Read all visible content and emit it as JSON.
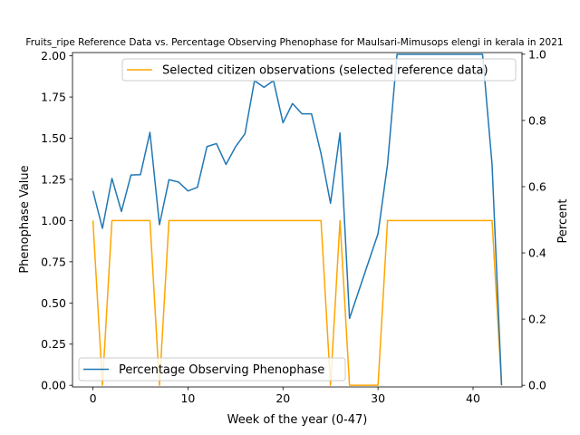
{
  "chart_data": {
    "type": "line",
    "title": "Fruits_ripe Reference Data vs. Percentage Observing Phenophase for Maulsari-Mimusops elengi in kerala in 2021",
    "xlabel": "Week of the year (0-47)",
    "ylabel_left": "Phenophase Value",
    "ylabel_right": "Percent",
    "xlim": [
      -2.15,
      45.15
    ],
    "ylim_left": [
      -0.01,
      2.02
    ],
    "ylim_right": [
      -0.005,
      1.005
    ],
    "x_ticks": [
      0,
      10,
      20,
      30,
      40
    ],
    "y_left_ticks": [
      "0.00",
      "0.25",
      "0.50",
      "0.75",
      "1.00",
      "1.25",
      "1.50",
      "1.75",
      "2.00"
    ],
    "y_right_ticks": [
      "0.0",
      "0.2",
      "0.4",
      "0.6",
      "0.8",
      "1.0"
    ],
    "series": [
      {
        "name": "Selected citizen observations (selected reference data)",
        "axis": "left",
        "color": "#ffa500",
        "legend_position": "upper right",
        "x": [
          0,
          1,
          2,
          3,
          4,
          5,
          6,
          7,
          8,
          9,
          10,
          11,
          12,
          13,
          14,
          15,
          16,
          17,
          18,
          19,
          20,
          21,
          22,
          23,
          24,
          25,
          26,
          27,
          28,
          29,
          30,
          31,
          32,
          33,
          34,
          35,
          36,
          37,
          38,
          39,
          40,
          41,
          42,
          43
        ],
        "values": [
          1,
          0,
          1,
          1,
          1,
          1,
          1,
          0,
          1,
          1,
          1,
          1,
          1,
          1,
          1,
          1,
          1,
          1,
          1,
          1,
          1,
          1,
          1,
          1,
          1,
          0,
          1,
          0,
          0,
          0,
          0,
          1,
          1,
          1,
          1,
          1,
          1,
          1,
          1,
          1,
          1,
          1,
          1,
          0
        ]
      },
      {
        "name": "Percentage Observing Phenophase",
        "axis": "right",
        "color": "#1f77b4",
        "legend_position": "lower left",
        "x": [
          0,
          1,
          2,
          3,
          4,
          5,
          6,
          7,
          8,
          9,
          10,
          11,
          12,
          13,
          14,
          15,
          16,
          17,
          18,
          19,
          20,
          21,
          22,
          23,
          24,
          25,
          26,
          27,
          30,
          31,
          32,
          33,
          34,
          35,
          36,
          37,
          38,
          39,
          40,
          41,
          42,
          43
        ],
        "values": [
          0.587,
          0.474,
          0.625,
          0.525,
          0.635,
          0.636,
          0.764,
          0.485,
          0.621,
          0.614,
          0.587,
          0.598,
          0.721,
          0.73,
          0.667,
          0.72,
          0.76,
          0.92,
          0.9,
          0.92,
          0.793,
          0.851,
          0.82,
          0.82,
          0.7,
          0.55,
          0.762,
          0.202,
          0.458,
          0.667,
          1.0,
          1.0,
          1.0,
          1.0,
          1.0,
          1.0,
          1.0,
          1.0,
          1.0,
          1.0,
          0.667,
          0.0
        ]
      }
    ]
  }
}
